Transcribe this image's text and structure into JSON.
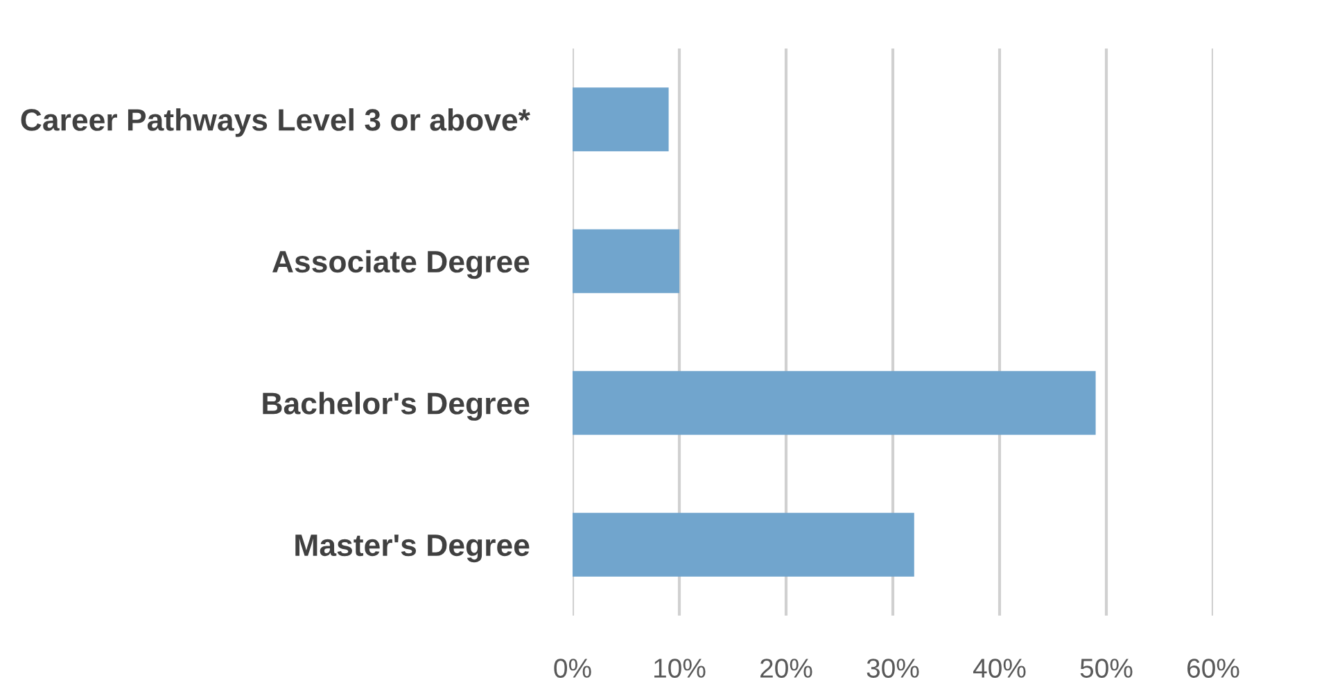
{
  "chart_data": {
    "type": "bar",
    "orientation": "horizontal",
    "categories": [
      "Career Pathways Level 3 or above*",
      "Associate Degree",
      "Bachelor's Degree",
      "Master's Degree"
    ],
    "values": [
      9,
      10,
      49,
      32
    ],
    "color": "#71a5cd",
    "xlim": [
      0,
      60
    ],
    "xticks": [
      {
        "value": 0,
        "label": "0%"
      },
      {
        "value": 10,
        "label": "10%"
      },
      {
        "value": 20,
        "label": "20%"
      },
      {
        "value": 30,
        "label": "30%"
      },
      {
        "value": 40,
        "label": "40%"
      },
      {
        "value": 50,
        "label": "50%"
      },
      {
        "value": 60,
        "label": "60%"
      }
    ],
    "grid": "x",
    "legend": false
  }
}
